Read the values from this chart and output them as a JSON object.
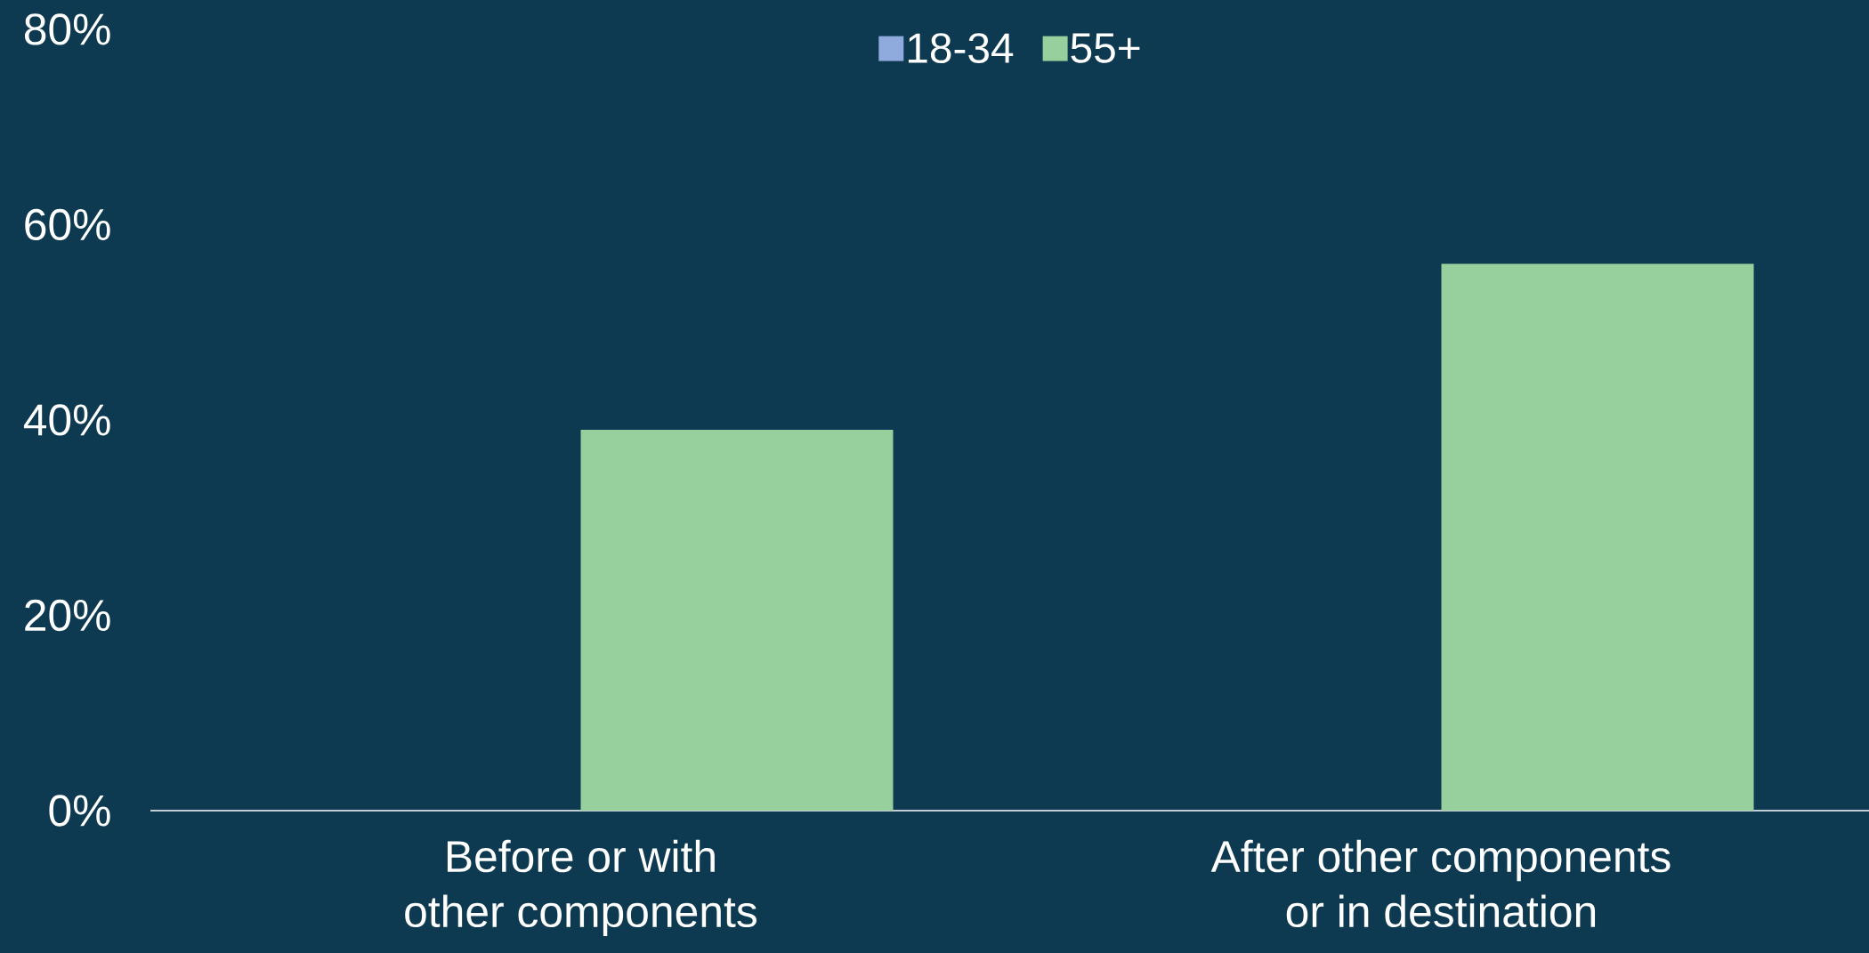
{
  "chart_data": {
    "type": "bar",
    "categories": [
      "Before or with other components",
      "After other components or in destination"
    ],
    "series": [
      {
        "name": "18-34",
        "color": "#8faadc",
        "values": [
          null,
          null
        ]
      },
      {
        "name": "55+",
        "color": "#97d09d",
        "values": [
          39,
          56
        ]
      }
    ],
    "ylim": [
      0,
      80
    ],
    "yticks": [
      {
        "value": 0,
        "label": "0%"
      },
      {
        "value": 20,
        "label": "20%"
      },
      {
        "value": 40,
        "label": "40%"
      },
      {
        "value": 60,
        "label": "60%"
      },
      {
        "value": 80,
        "label": "80%"
      }
    ],
    "legend": "top",
    "grid": false
  }
}
